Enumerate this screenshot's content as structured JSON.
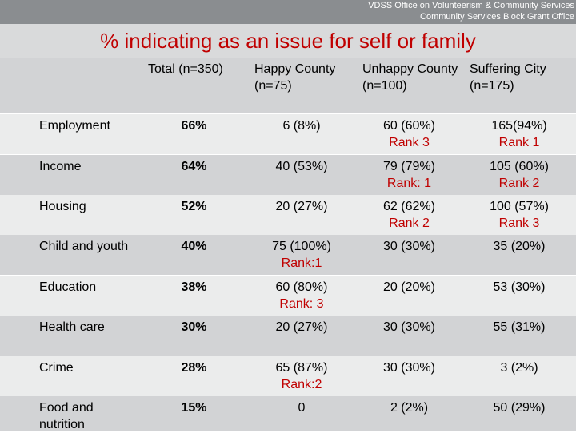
{
  "header": {
    "org_line1": "VDSS Office on Volunteerism & Community Services",
    "org_line2": "Community Services Block Grant Office",
    "title": "% indicating as an issue for self or family"
  },
  "columns": {
    "total": "Total (n=350)",
    "happy": "Happy County (n=75)",
    "unhappy": "Unhappy County (n=100)",
    "suffering": "Suffering City (n=175)"
  },
  "rows": [
    {
      "issue": "Employment",
      "total": "66%",
      "happy": "6 (8%)",
      "happy_rank": "",
      "unhappy": "60 (60%)",
      "unhappy_rank": "Rank 3",
      "suffering": "165(94%)",
      "suffering_rank": "Rank 1"
    },
    {
      "issue": "Income",
      "total": "64%",
      "happy": "40 (53%)",
      "happy_rank": "",
      "unhappy": "79 (79%)",
      "unhappy_rank": "Rank: 1",
      "suffering": "105 (60%)",
      "suffering_rank": "Rank 2"
    },
    {
      "issue": "Housing",
      "total": "52%",
      "happy": "20 (27%)",
      "happy_rank": "",
      "unhappy": "62 (62%)",
      "unhappy_rank": "Rank 2",
      "suffering": "100 (57%)",
      "suffering_rank": "Rank 3"
    },
    {
      "issue": "Child and youth",
      "total": "40%",
      "happy": "75 (100%)",
      "happy_rank": "Rank:1",
      "unhappy": "30 (30%)",
      "unhappy_rank": "",
      "suffering": "35 (20%)",
      "suffering_rank": ""
    },
    {
      "issue": "Education",
      "total": "38%",
      "happy": "60 (80%)",
      "happy_rank": "Rank: 3",
      "unhappy": "20 (20%)",
      "unhappy_rank": "",
      "suffering": "53 (30%)",
      "suffering_rank": ""
    },
    {
      "issue": "Health care",
      "total": "30%",
      "happy": "20 (27%)",
      "happy_rank": "",
      "unhappy": "30 (30%)",
      "unhappy_rank": "",
      "suffering": "55 (31%)",
      "suffering_rank": ""
    },
    {
      "issue": "Crime",
      "total": "28%",
      "happy": "65 (87%)",
      "happy_rank": "Rank:2",
      "unhappy": "30 (30%)",
      "unhappy_rank": "",
      "suffering": "3 (2%)",
      "suffering_rank": ""
    },
    {
      "issue": "Food and nutrition",
      "total": "15%",
      "happy": "0",
      "happy_rank": "",
      "unhappy": "2 (2%)",
      "unhappy_rank": "",
      "suffering": "50 (29%)",
      "suffering_rank": ""
    }
  ],
  "colors": {
    "title": "#c00000",
    "rank": "#c00000",
    "header_bar": "#8a8d90",
    "row_dark": "#d2d3d5",
    "row_light": "#ebecec"
  }
}
